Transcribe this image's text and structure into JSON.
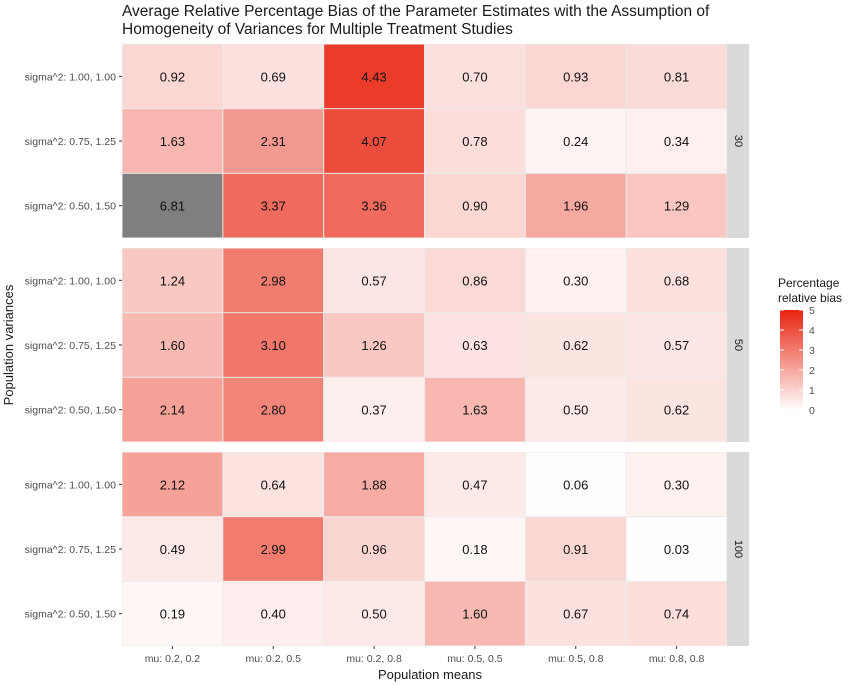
{
  "chart_data": {
    "type": "heatmap",
    "title_lines": [
      "Average Relative Percentage Bias of the Parameter Estimates with the Assumption of",
      "Homogeneity of Variances for Multiple Treatment Studies"
    ],
    "xlabel": "Population means",
    "ylabel": "Population variances",
    "x_categories": [
      "mu: 0.2, 0.2",
      "mu: 0.2, 0.5",
      "mu: 0.2, 0.8",
      "mu: 0.5, 0.5",
      "mu: 0.5, 0.8",
      "mu: 0.8, 0.8"
    ],
    "y_categories": [
      "sigma^2: 1.00, 1.00",
      "sigma^2: 0.75, 1.25",
      "sigma^2: 0.50, 1.50"
    ],
    "facets": [
      {
        "label": "30",
        "values": [
          [
            "0.92",
            "0.69",
            "4.43",
            "0.70",
            "0.93",
            "0.81"
          ],
          [
            "1.63",
            "2.31",
            "4.07",
            "0.78",
            "0.24",
            "0.34"
          ],
          [
            "6.81",
            "3.37",
            "3.36",
            "0.90",
            "1.96",
            "1.29"
          ]
        ]
      },
      {
        "label": "50",
        "values": [
          [
            "1.24",
            "2.98",
            "0.57",
            "0.86",
            "0.30",
            "0.68"
          ],
          [
            "1.60",
            "3.10",
            "1.26",
            "0.63",
            "0.62",
            "0.57"
          ],
          [
            "2.14",
            "2.80",
            "0.37",
            "1.63",
            "0.50",
            "0.62"
          ]
        ]
      },
      {
        "label": "100",
        "values": [
          [
            "2.12",
            "0.64",
            "1.88",
            "0.47",
            "0.06",
            "0.30"
          ],
          [
            "0.49",
            "2.99",
            "0.96",
            "0.18",
            "0.91",
            "0.03"
          ],
          [
            "0.19",
            "0.40",
            "0.50",
            "1.60",
            "0.67",
            "0.74"
          ]
        ]
      }
    ],
    "legend": {
      "title_lines": [
        "Percentage",
        "relative bias"
      ],
      "ticks": [
        "5",
        "4",
        "3",
        "2",
        "1",
        "0"
      ],
      "limits": [
        0,
        5
      ]
    },
    "colors": {
      "low": "#ffffff",
      "high": "#e8230f",
      "na": "#7f7f7f",
      "panel_bg": "#ebebeb",
      "strip_bg": "#d9d9d9"
    }
  }
}
